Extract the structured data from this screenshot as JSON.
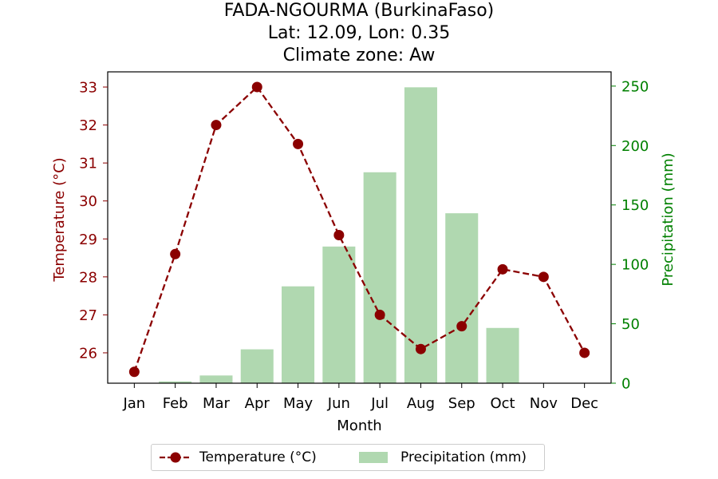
{
  "title": {
    "line1": "FADA-NGOURMA (BurkinaFaso)",
    "line2": "Lat: 12.09, Lon: 0.35",
    "line3": "Climate zone: Aw"
  },
  "colors": {
    "temperature": "#8b0000",
    "precipitation_fill": "#b0d8b0",
    "precipitation_axis": "#008000"
  },
  "chart_data": {
    "type": "bar",
    "categories": [
      "Jan",
      "Feb",
      "Mar",
      "Apr",
      "May",
      "Jun",
      "Jul",
      "Aug",
      "Sep",
      "Oct",
      "Nov",
      "Dec"
    ],
    "xlabel": "Month",
    "series": [
      {
        "name": "Temperature (°C)",
        "type": "line",
        "axis": "left",
        "values": [
          25.5,
          28.6,
          32.0,
          33.0,
          31.5,
          29.1,
          27.0,
          26.1,
          26.7,
          28.2,
          28.0,
          26.0
        ]
      },
      {
        "name": "Precipitation (mm)",
        "type": "bar",
        "axis": "right",
        "values": [
          0,
          1.5,
          6.5,
          28.5,
          81.5,
          115,
          177.5,
          249,
          143,
          46.5,
          0,
          0
        ]
      }
    ],
    "y_left": {
      "label": "Temperature (°C)",
      "ylim": [
        25.2,
        33.4
      ],
      "ticks": [
        26,
        27,
        28,
        29,
        30,
        31,
        32,
        33
      ]
    },
    "y_right": {
      "label": "Precipitation (mm)",
      "ylim": [
        0,
        262
      ],
      "ticks": [
        0,
        50,
        100,
        150,
        200,
        250
      ]
    },
    "legend_position": "bottom-center",
    "grid": false
  }
}
